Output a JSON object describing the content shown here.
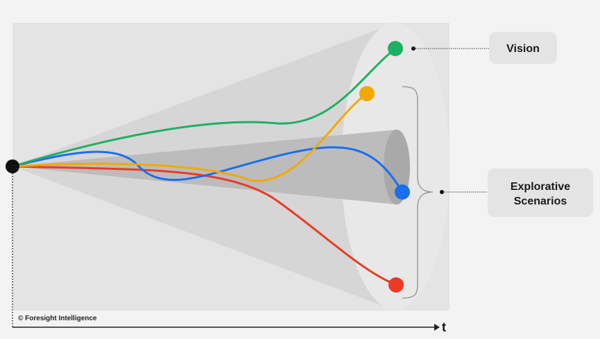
{
  "labels": {
    "vision": "Vision",
    "explorative": [
      "Explorative",
      "Scenarios"
    ]
  },
  "axis": {
    "time": "t"
  },
  "credit": "© Foresight Intelligence"
}
